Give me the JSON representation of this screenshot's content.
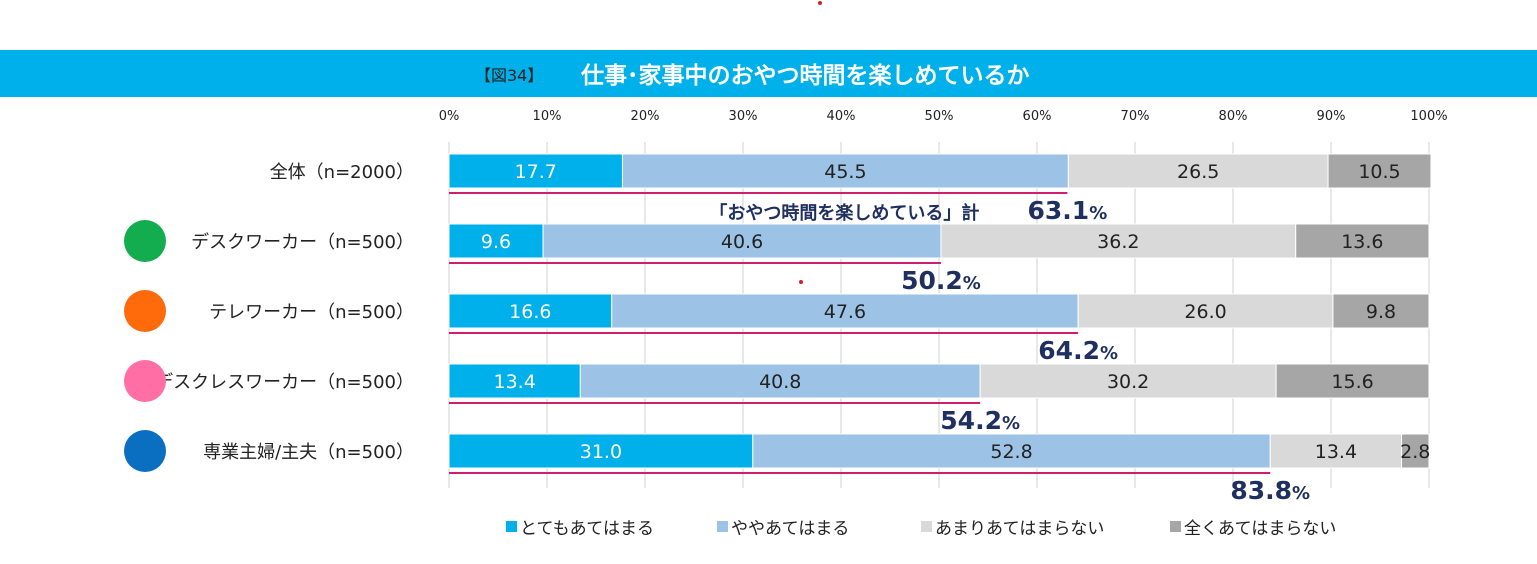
{
  "figure_label": "【図34】",
  "title": "仕事･家事中のおやつ時間を楽しめているか",
  "chart_data": {
    "type": "bar",
    "orientation": "horizontal-stacked-100",
    "xlim": [
      0,
      100
    ],
    "x_ticks": [
      "0%",
      "10%",
      "20%",
      "30%",
      "40%",
      "50%",
      "60%",
      "70%",
      "80%",
      "90%",
      "100%"
    ],
    "grid": true,
    "legend_position": "bottom",
    "categories": [
      "全体（n=2000）",
      "デスクワーカー（n=500）",
      "テレワーカー（n=500）",
      "デスクレスワーカー（n=500）",
      "専業主婦/主夫（n=500）"
    ],
    "category_marker_colors": [
      null,
      "#13ad4f",
      "#ff6a0b",
      "#ff6fa5",
      "#0a6fc1"
    ],
    "series": [
      {
        "name": "とてもあてはまる",
        "color": "#00b0eb",
        "label_color": "#ffffff",
        "values": [
          17.7,
          9.6,
          16.6,
          13.4,
          31.0
        ],
        "labels": [
          "17.7",
          "9.6",
          "16.6",
          "13.4",
          "31.0"
        ]
      },
      {
        "name": "ややあてはまる",
        "color": "#9cc3e6",
        "label_color": "#222222",
        "values": [
          45.5,
          40.6,
          47.6,
          40.8,
          52.8
        ],
        "labels": [
          "45.5",
          "40.6",
          "47.6",
          "40.8",
          "52.8"
        ]
      },
      {
        "name": "あまりあてはまらない",
        "color": "#d9d9d9",
        "label_color": "#222222",
        "values": [
          26.5,
          36.2,
          26.0,
          30.2,
          13.4
        ],
        "labels": [
          "26.5",
          "36.2",
          "26.0",
          "30.2",
          "13.4"
        ]
      },
      {
        "name": "全くあてはまらない",
        "color": "#a6a6a6",
        "label_color": "#222222",
        "values": [
          10.5,
          13.6,
          9.8,
          15.6,
          2.8
        ],
        "labels": [
          "10.5",
          "13.6",
          "9.8",
          "15.6",
          "2.8"
        ]
      }
    ],
    "totals": {
      "prefix": "「おやつ時間を楽しめている」計",
      "values": [
        63.1,
        50.2,
        64.2,
        54.2,
        83.8
      ],
      "labels": [
        "63.1",
        "50.2",
        "64.2",
        "54.2",
        "83.8"
      ],
      "unit": "%",
      "line_color": "#d01d6e",
      "text_color": "#1f2f5f"
    }
  }
}
